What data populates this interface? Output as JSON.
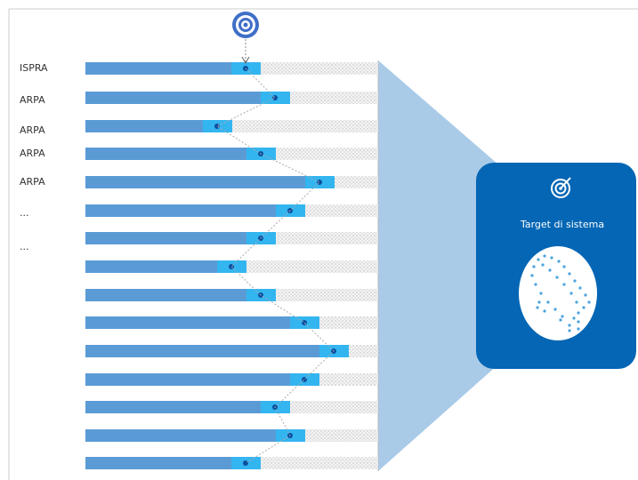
{
  "labels": [
    "ISPRA",
    "ARPA",
    "ARPA",
    "ARPA",
    "ARPA",
    "...",
    "..."
  ],
  "target_box": {
    "title": "Target di sistema"
  }
}
